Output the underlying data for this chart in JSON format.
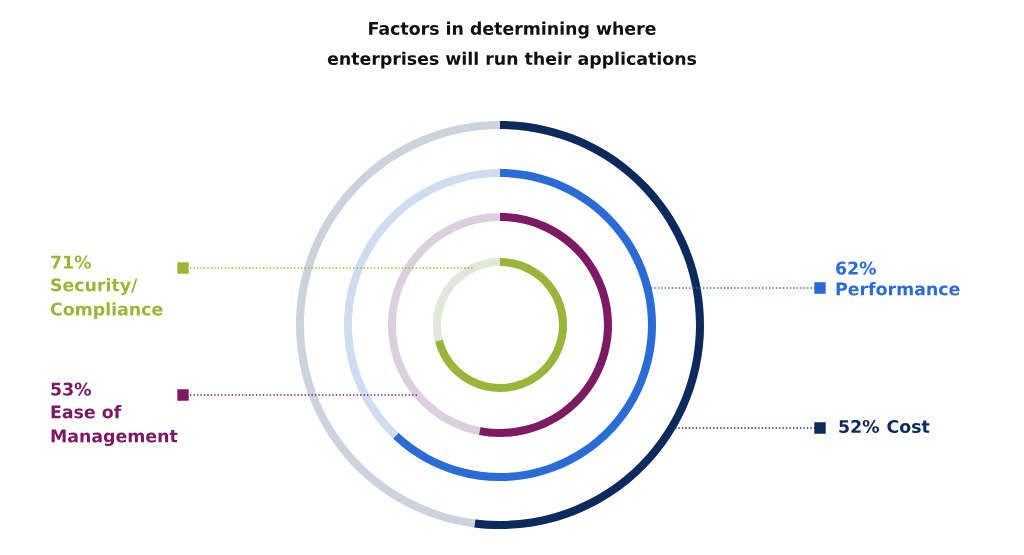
{
  "chart_data": {
    "type": "other",
    "title": "Factors in determining where\nenterprises will run their applications",
    "categories": [
      "Cost",
      "Performance",
      "Ease of\nManagement",
      "Security/\nCompliance"
    ],
    "values": [
      52,
      62,
      53,
      71
    ],
    "value_labels": [
      "52%",
      "62%",
      "53%",
      "71%"
    ],
    "colors": [
      "#0d2a5c",
      "#2b6bd6",
      "#7d1a63",
      "#9ab53a"
    ]
  }
}
